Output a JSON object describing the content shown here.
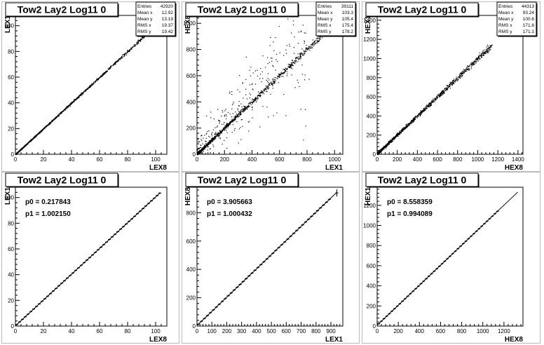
{
  "chart_data": [
    {
      "type": "scatter",
      "title": "Tow2 Lay2 Log11 0",
      "xlabel": "LEX8",
      "ylabel": "LEX1",
      "xlim": [
        0,
        108
      ],
      "ylim": [
        0,
        108
      ],
      "xticks": [
        0,
        20,
        40,
        60,
        80,
        100
      ],
      "yticks": [
        0,
        20,
        40,
        60,
        80,
        100
      ],
      "stats": [
        {
          "label": "Entries",
          "value": "42920"
        },
        {
          "label": "Mean x",
          "value": "12.92"
        },
        {
          "label": "Mean y",
          "value": "13.19"
        },
        {
          "label": "RMS x",
          "value": "19.37"
        },
        {
          "label": "RMS y",
          "value": "19.42"
        }
      ],
      "relation": {
        "slope": 1.0,
        "intercept": 0.2,
        "x_range": [
          0,
          104
        ],
        "spread": 0.4
      }
    },
    {
      "type": "scatter",
      "title": "Tow2 Lay2 Log11 0",
      "xlabel": "LEX1",
      "ylabel": "HEX8",
      "xlim": [
        0,
        1060
      ],
      "ylim": [
        0,
        1060
      ],
      "xticks": [
        0,
        200,
        400,
        600,
        800,
        1000
      ],
      "yticks": [
        0,
        200,
        400,
        600,
        800,
        1000
      ],
      "stats": [
        {
          "label": "Entries",
          "value": "39111"
        },
        {
          "label": "Mean x",
          "value": "103.3"
        },
        {
          "label": "Mean y",
          "value": "105.4"
        },
        {
          "label": "RMS x",
          "value": "175.4"
        },
        {
          "label": "RMS y",
          "value": "178.2"
        }
      ],
      "relation": {
        "slope": 1.0,
        "intercept": 4,
        "x_range": [
          0,
          960
        ],
        "spread": 10,
        "outlier_fraction": 0.25
      }
    },
    {
      "type": "scatter",
      "title": "Tow2 Lay2 Log11 0",
      "xlabel": "HEX8",
      "ylabel": "HEX1",
      "xlim": [
        0,
        1450
      ],
      "ylim": [
        0,
        1450
      ],
      "xticks": [
        0,
        200,
        400,
        600,
        800,
        1000,
        1200,
        1400
      ],
      "yticks": [
        0,
        200,
        400,
        600,
        800,
        1000,
        1200,
        1400
      ],
      "stats": [
        {
          "label": "Entries",
          "value": "44313"
        },
        {
          "label": "Mean x",
          "value": "93.24"
        },
        {
          "label": "Mean y",
          "value": "100.6"
        },
        {
          "label": "RMS x",
          "value": "171.8"
        },
        {
          "label": "RMS y",
          "value": "171.1"
        }
      ],
      "relation": {
        "slope": 0.994,
        "intercept": 8.6,
        "x_range": [
          0,
          1140
        ],
        "spread": 12
      }
    },
    {
      "type": "scatter",
      "title": "Tow2 Lay2 Log11 0",
      "xlabel": "LEX8",
      "ylabel": "LEX1",
      "xlim": [
        0,
        108
      ],
      "ylim": [
        0,
        108
      ],
      "xticks": [
        0,
        20,
        40,
        60,
        80,
        100
      ],
      "yticks": [
        0,
        20,
        40,
        60,
        80,
        100
      ],
      "fit_params": [
        {
          "label": "p0 = ",
          "value": "0.217843"
        },
        {
          "label": "p1 = ",
          "value": "1.002150"
        }
      ],
      "profile": {
        "x_start": 1,
        "x_end": 103,
        "step": 2,
        "err": 0.6
      },
      "fit_line": {
        "slope": 1.00215,
        "intercept": 0.217843,
        "x_range": [
          0,
          103
        ]
      }
    },
    {
      "type": "scatter",
      "title": "Tow2 Lay2 Log11 0",
      "xlabel": "LEX1",
      "ylabel": "HEX8",
      "xlim": [
        0,
        980
      ],
      "ylim": [
        0,
        980
      ],
      "xticks": [
        0,
        100,
        200,
        300,
        400,
        500,
        600,
        700,
        800,
        900
      ],
      "yticks": [
        0,
        200,
        400,
        600,
        800
      ],
      "fit_params": [
        {
          "label": "p0 = ",
          "value": "3.905663"
        },
        {
          "label": "p1 = ",
          "value": "1.000432"
        }
      ],
      "profile": {
        "x_start": 10,
        "x_end": 900,
        "step": 20,
        "err": 6,
        "extra_points": [
          [
            940,
            940,
            25
          ]
        ]
      },
      "fit_line": {
        "slope": 1.000432,
        "intercept": 3.905663,
        "x_range": [
          0,
          940
        ]
      }
    },
    {
      "type": "scatter",
      "title": "Tow2 Lay2 Log11 0",
      "xlabel": "HEX8",
      "ylabel": "HEX1",
      "xlim": [
        0,
        1380
      ],
      "ylim": [
        0,
        1380
      ],
      "xticks": [
        0,
        200,
        400,
        600,
        800,
        1000,
        1200
      ],
      "yticks": [
        0,
        200,
        400,
        600,
        800,
        1000,
        1200
      ],
      "fit_params": [
        {
          "label": "p0 = ",
          "value": "8.558359"
        },
        {
          "label": "p1 = ",
          "value": "0.994089"
        }
      ],
      "profile": {
        "x_start": 15,
        "x_end": 1140,
        "step": 25,
        "err": 8
      },
      "fit_line": {
        "slope": 0.994089,
        "intercept": 8.558359,
        "x_range": [
          0,
          1330
        ]
      }
    }
  ]
}
